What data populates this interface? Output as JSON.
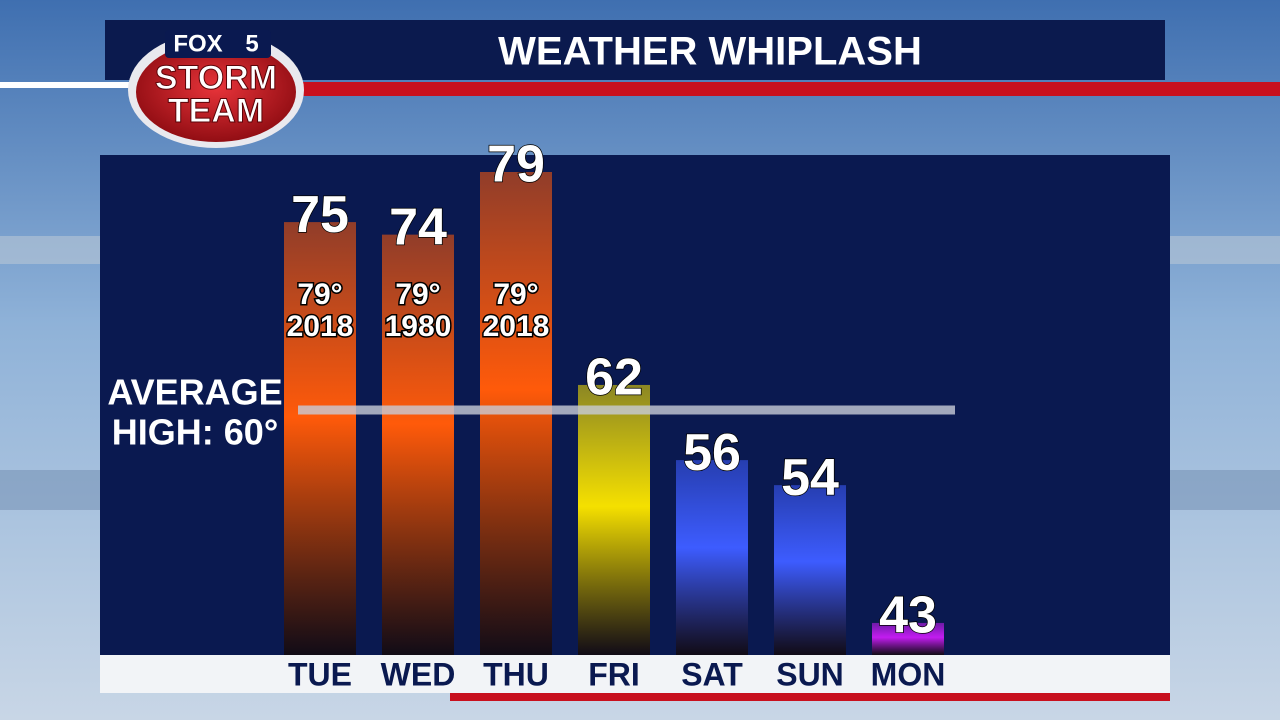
{
  "logo": {
    "network": "FOX",
    "channel": "5",
    "line1": "STORM",
    "line2": "TEAM"
  },
  "chart_data": {
    "type": "bar",
    "title": "WEATHER WHIPLASH",
    "categories": [
      "TUE",
      "WED",
      "THU",
      "FRI",
      "SAT",
      "SUN",
      "MON"
    ],
    "values": [
      75,
      74,
      79,
      62,
      56,
      54,
      43
    ],
    "colors": [
      "#ff5a0a",
      "#ff5a0a",
      "#ff5a0a",
      "#f5e000",
      "#3d5cff",
      "#3d5cff",
      "#c21cf0"
    ],
    "record_labels": [
      [
        "79°",
        "2018"
      ],
      [
        "79°",
        "1980"
      ],
      [
        "79°",
        "2018"
      ],
      null,
      null,
      null,
      null
    ],
    "average": 60,
    "average_label": [
      "AVERAGE",
      "HIGH: 60°"
    ]
  }
}
